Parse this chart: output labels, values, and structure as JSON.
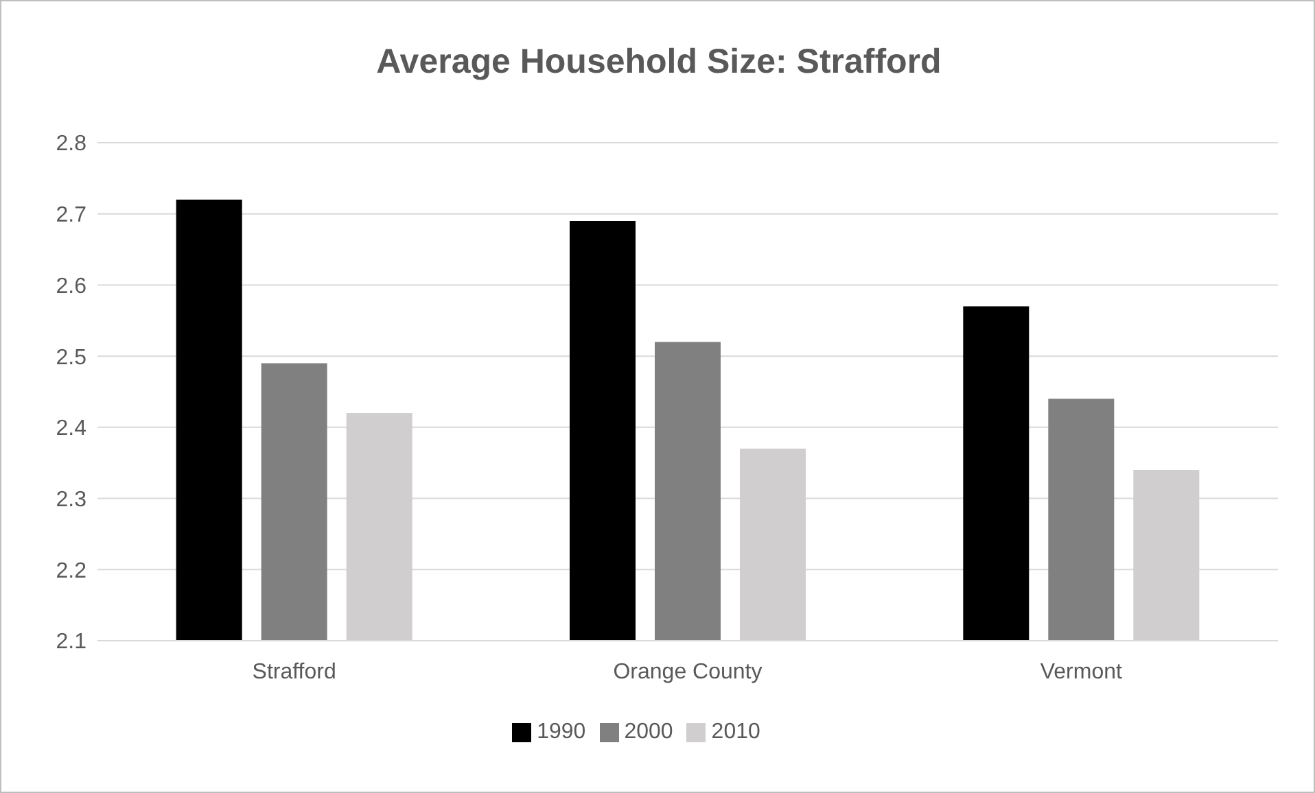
{
  "chart_data": {
    "type": "bar",
    "title": "Average Household Size: Strafford",
    "categories": [
      "Strafford",
      "Orange County",
      "Vermont"
    ],
    "series": [
      {
        "name": "1990",
        "color": "#000000",
        "values": [
          2.72,
          2.69,
          2.57
        ]
      },
      {
        "name": "2000",
        "color": "#808080",
        "values": [
          2.49,
          2.52,
          2.44
        ]
      },
      {
        "name": "2010",
        "color": "#d0cece",
        "values": [
          2.42,
          2.37,
          2.34
        ]
      }
    ],
    "ylim": [
      2.1,
      2.8
    ],
    "yticks": [
      2.1,
      2.2,
      2.3,
      2.4,
      2.5,
      2.6,
      2.7,
      2.8
    ],
    "grid": "y",
    "legend": "bottom"
  }
}
